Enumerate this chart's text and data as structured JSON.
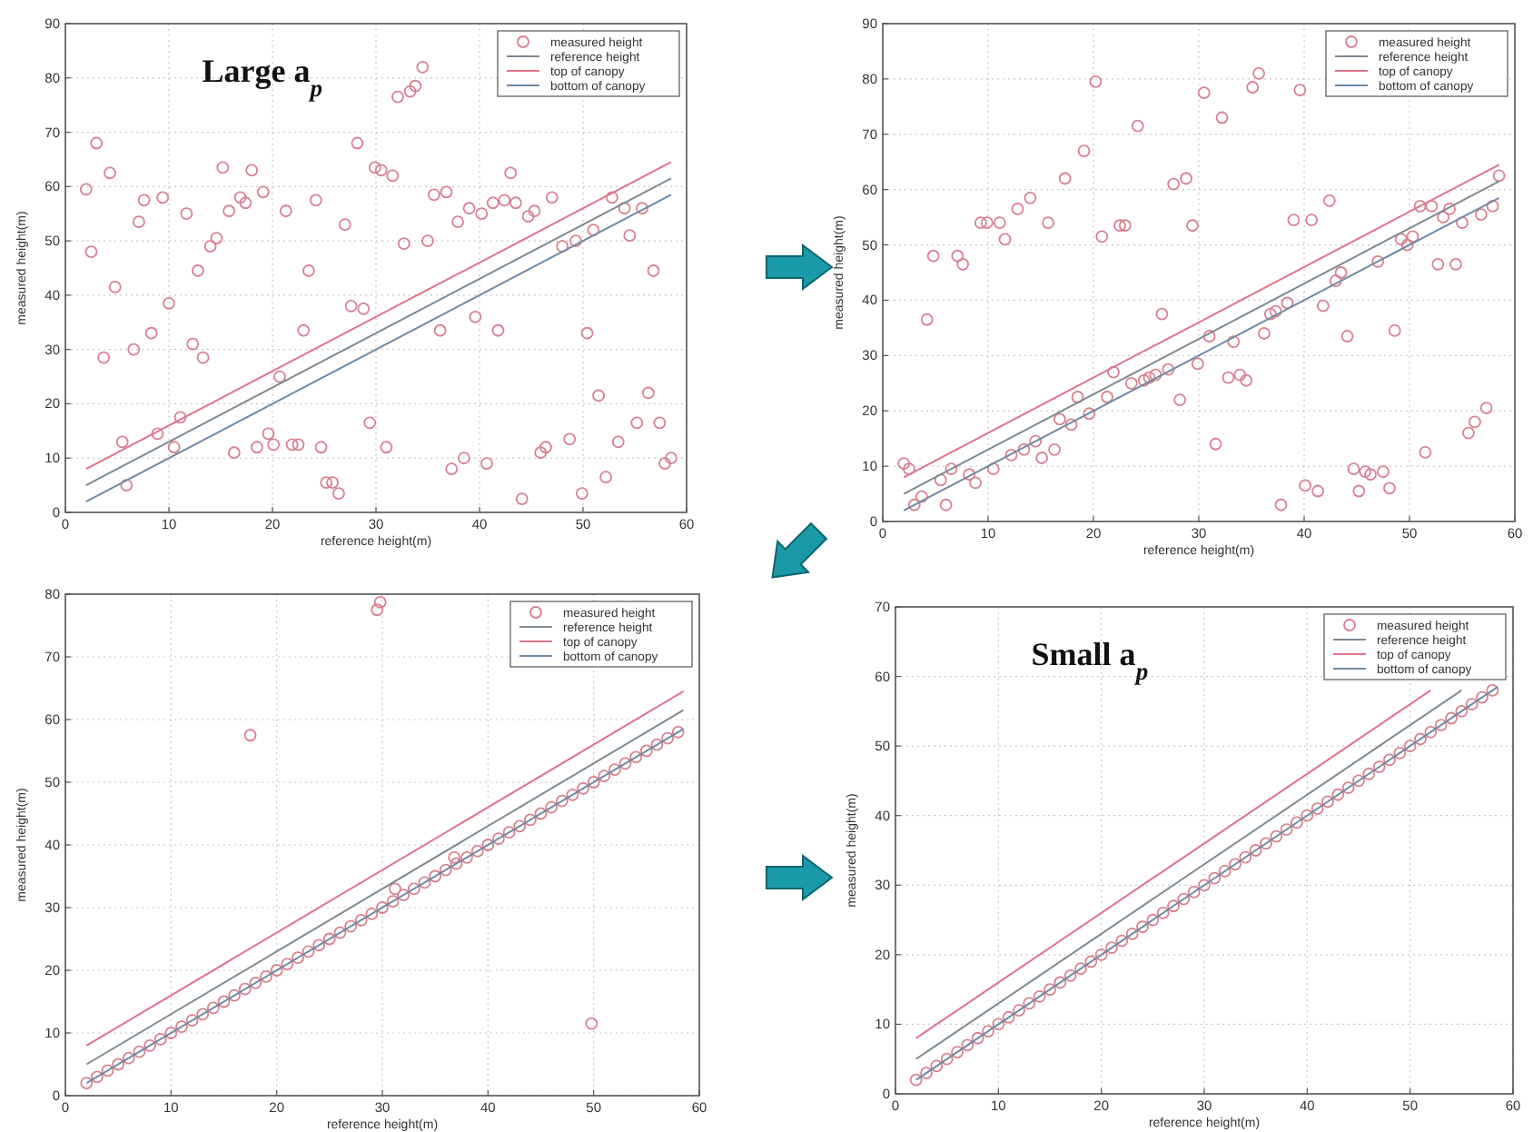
{
  "chart_data": [
    {
      "type": "scatter",
      "xlabel": "reference height(m)",
      "ylabel": "measured height(m)",
      "xlim": [
        0,
        60
      ],
      "ylim": [
        0,
        90
      ],
      "xticks": [
        0,
        10,
        20,
        30,
        40,
        50,
        60
      ],
      "yticks": [
        0,
        10,
        20,
        30,
        40,
        50,
        60,
        70,
        80,
        90
      ],
      "grid": true,
      "legend": "top right",
      "annotations": [
        "Large a$_{p}$"
      ],
      "series": [
        {
          "name": "measured height",
          "type": "scatter",
          "marker": "circle",
          "color": "#d9808f",
          "x": [
            2,
            2.5,
            3,
            3.7,
            4.3,
            4.8,
            5.5,
            5.9,
            6.6,
            7.1,
            7.6,
            8.3,
            8.9,
            9.4,
            10,
            10.5,
            11.1,
            11.7,
            12.3,
            12.8,
            13.3,
            14,
            14.6,
            15.2,
            15.8,
            16.3,
            16.9,
            17.4,
            18,
            18.5,
            19.1,
            19.6,
            20.1,
            20.7,
            21.3,
            21.9,
            22.5,
            23,
            23.5,
            24.2,
            24.7,
            25.2,
            25.8,
            26.4,
            27,
            27.6,
            28.2,
            28.8,
            29.4,
            29.9,
            30.5,
            31,
            31.6,
            32.1,
            32.7,
            33.3,
            33.8,
            34.5,
            35,
            35.6,
            36.2,
            36.8,
            37.3,
            37.9,
            38.5,
            39,
            39.6,
            40.2,
            40.7,
            41.3,
            41.8,
            42.4,
            43,
            43.5,
            44.1,
            44.7,
            45.3,
            45.9,
            46.4,
            47,
            48,
            48.7,
            49.3,
            49.9,
            50.4,
            51,
            51.5,
            52.2,
            52.8,
            53.4,
            54,
            54.5,
            55.2,
            55.7,
            56.3,
            56.8,
            57.4,
            57.9,
            58.5
          ],
          "values": [
            59.5,
            48,
            68,
            28.5,
            62.5,
            41.5,
            13,
            5,
            30,
            53.5,
            57.5,
            33,
            14.5,
            58,
            38.5,
            12,
            17.5,
            55,
            31,
            44.5,
            28.5,
            49,
            50.5,
            63.5,
            55.5,
            11,
            58,
            57,
            63,
            12,
            59,
            14.5,
            12.5,
            25,
            55.5,
            12.5,
            12.5,
            33.5,
            44.5,
            57.5,
            12,
            5.5,
            5.5,
            3.5,
            53,
            38,
            68,
            37.5,
            16.5,
            63.5,
            63,
            12,
            62,
            76.5,
            49.5,
            77.5,
            78.5,
            82,
            50,
            58.5,
            33.5,
            59,
            8,
            53.5,
            10,
            56,
            36,
            55,
            9,
            57,
            33.5,
            57.5,
            62.5,
            57,
            2.5,
            54.5,
            55.5,
            11,
            12,
            58,
            49,
            13.5,
            50,
            3.5,
            33,
            52,
            21.5,
            6.5,
            58,
            13,
            56,
            51,
            16.5,
            56,
            22,
            44.5,
            16.5,
            9,
            10
          ]
        },
        {
          "name": "reference height",
          "type": "line",
          "line_style": "solid",
          "color": "#7d8a94",
          "x": [
            2,
            58.5
          ],
          "values": [
            5,
            61.5
          ]
        },
        {
          "name": "top of canopy",
          "type": "line",
          "line_style": "solid",
          "color": "#e0748a",
          "x": [
            2,
            58.5
          ],
          "values": [
            8,
            64.5
          ]
        },
        {
          "name": "bottom of canopy",
          "type": "line",
          "line_style": "solid",
          "color": "#6f8aa3",
          "x": [
            2,
            58.5
          ],
          "values": [
            2,
            58.5
          ]
        }
      ]
    },
    {
      "type": "scatter",
      "xlabel": "reference height(m)",
      "ylabel": "measured height(m)",
      "xlim": [
        0,
        60
      ],
      "ylim": [
        0,
        90
      ],
      "xticks": [
        0,
        10,
        20,
        30,
        40,
        50,
        60
      ],
      "yticks": [
        0,
        10,
        20,
        30,
        40,
        50,
        60,
        70,
        80,
        90
      ],
      "grid": true,
      "legend": "top right",
      "series": [
        {
          "name": "measured height",
          "type": "scatter",
          "marker": "circle",
          "color": "#d9808f",
          "x": [
            2,
            2.5,
            3,
            3.7,
            4.2,
            4.8,
            5.5,
            6,
            6.5,
            7.1,
            7.6,
            8.2,
            8.8,
            9.3,
            9.9,
            10.5,
            11.1,
            11.6,
            12.2,
            12.8,
            13.4,
            14,
            14.5,
            15.1,
            15.7,
            16.3,
            16.8,
            17.3,
            17.9,
            18.5,
            19.1,
            19.6,
            20.2,
            20.8,
            21.3,
            21.9,
            22.5,
            23,
            23.6,
            24.2,
            24.8,
            25.3,
            25.9,
            26.5,
            27.1,
            27.6,
            28.2,
            28.8,
            29.4,
            29.9,
            30.5,
            31,
            31.6,
            32.2,
            32.8,
            33.3,
            33.9,
            34.5,
            35.1,
            35.7,
            36.2,
            36.8,
            37.3,
            37.8,
            38.4,
            39,
            39.6,
            40.1,
            40.7,
            41.3,
            41.8,
            42.4,
            43,
            43.5,
            44.1,
            44.7,
            45.2,
            45.8,
            46.3,
            47,
            47.5,
            48.1,
            48.6,
            49.2,
            49.8,
            50.3,
            51,
            51.5,
            52.1,
            52.7,
            53.2,
            53.8,
            54.4,
            55,
            55.6,
            56.2,
            56.8,
            57.3,
            57.9,
            58.5
          ],
          "values": [
            10.5,
            9.5,
            3,
            4.5,
            36.5,
            48,
            7.5,
            3,
            9.5,
            48,
            46.5,
            8.5,
            7,
            54,
            54,
            9.5,
            54,
            51,
            12,
            56.5,
            13,
            58.5,
            14.5,
            11.5,
            54,
            13,
            18.5,
            62,
            17.5,
            22.5,
            67,
            19.5,
            79.5,
            51.5,
            22.5,
            27,
            53.5,
            53.5,
            25,
            71.5,
            25.5,
            26,
            26.5,
            37.5,
            27.5,
            61,
            22,
            62,
            53.5,
            28.5,
            77.5,
            33.5,
            14,
            73,
            26,
            32.5,
            26.5,
            25.5,
            78.5,
            81,
            34,
            37.5,
            38,
            3,
            39.5,
            54.5,
            78,
            6.5,
            54.5,
            5.5,
            39,
            58,
            43.5,
            45,
            33.5,
            9.5,
            5.5,
            9,
            8.5,
            47,
            9,
            6,
            34.5,
            51,
            50,
            51.5,
            57,
            12.5,
            57,
            46.5,
            55,
            56.5,
            46.5,
            54,
            16,
            18,
            55.5,
            20.5,
            57,
            62.5
          ]
        },
        {
          "name": "reference height",
          "type": "line",
          "line_style": "solid",
          "color": "#7d8a94",
          "x": [
            2,
            58.5
          ],
          "values": [
            5,
            61.5
          ]
        },
        {
          "name": "top of canopy",
          "type": "line",
          "line_style": "solid",
          "color": "#e0748a",
          "x": [
            2,
            58.5
          ],
          "values": [
            8,
            64.5
          ]
        },
        {
          "name": "bottom of canopy",
          "type": "line",
          "line_style": "solid",
          "color": "#6f8aa3",
          "x": [
            2,
            58.5
          ],
          "values": [
            2,
            58.5
          ]
        }
      ]
    },
    {
      "type": "scatter",
      "xlabel": "reference height(m)",
      "ylabel": "measured height(m)",
      "xlim": [
        0,
        60
      ],
      "ylim": [
        0,
        80
      ],
      "xticks": [
        0,
        10,
        20,
        30,
        40,
        50,
        60
      ],
      "yticks": [
        0,
        10,
        20,
        30,
        40,
        50,
        60,
        70,
        80
      ],
      "grid": true,
      "legend": "top right",
      "series": [
        {
          "name": "measured height",
          "type": "scatter",
          "marker": "circle",
          "color": "#d9808f",
          "x": [
            2,
            3,
            4,
            5,
            6,
            7,
            8,
            9,
            10,
            11,
            12,
            13,
            14,
            15,
            16,
            17,
            18,
            19,
            20,
            21,
            22,
            23,
            24,
            25,
            26,
            27,
            28,
            29,
            30,
            31,
            32,
            33,
            34,
            35,
            36,
            37,
            38,
            39,
            40,
            41,
            42,
            43,
            44,
            45,
            46,
            47,
            48,
            49,
            50,
            51,
            52,
            53,
            54,
            55,
            56,
            57,
            58,
            17.5,
            29.5,
            29.8,
            49.8,
            31.2,
            36.8
          ],
          "values": [
            2,
            3,
            4,
            5,
            6,
            7,
            8,
            9,
            10,
            11,
            12,
            13,
            14,
            15,
            16,
            17,
            18,
            19,
            20,
            21,
            22,
            23,
            24,
            25,
            26,
            27,
            28,
            29,
            30,
            31,
            32,
            33,
            34,
            35,
            36,
            37,
            38,
            39,
            40,
            41,
            42,
            43,
            44,
            45,
            46,
            47,
            48,
            49,
            50,
            51,
            52,
            53,
            54,
            55,
            56,
            57,
            58,
            57.5,
            77.5,
            78.7,
            11.5,
            33,
            38
          ]
        },
        {
          "name": "reference height",
          "type": "line",
          "line_style": "solid",
          "color": "#7d8a94",
          "x": [
            2,
            58.5
          ],
          "values": [
            5,
            61.5
          ]
        },
        {
          "name": "top of canopy",
          "type": "line",
          "line_style": "solid",
          "color": "#e0748a",
          "x": [
            2,
            58.5
          ],
          "values": [
            8,
            64.5
          ]
        },
        {
          "name": "bottom of canopy",
          "type": "line",
          "line_style": "solid",
          "color": "#6f8aa3",
          "x": [
            2,
            58.5
          ],
          "values": [
            2,
            58.5
          ]
        }
      ]
    },
    {
      "type": "scatter",
      "xlabel": "reference height(m)",
      "ylabel": "measured height(m)",
      "xlim": [
        0,
        60
      ],
      "ylim": [
        0,
        70
      ],
      "xticks": [
        0,
        10,
        20,
        30,
        40,
        50,
        60
      ],
      "yticks": [
        0,
        10,
        20,
        30,
        40,
        50,
        60,
        70
      ],
      "grid": true,
      "legend": "top right",
      "annotations": [
        "Small a$_{p}$"
      ],
      "series": [
        {
          "name": "measured height",
          "type": "scatter",
          "marker": "circle",
          "color": "#d9808f",
          "x": [
            2,
            3,
            4,
            5,
            6,
            7,
            8,
            9,
            10,
            11,
            12,
            13,
            14,
            15,
            16,
            17,
            18,
            19,
            20,
            21,
            22,
            23,
            24,
            25,
            26,
            27,
            28,
            29,
            30,
            31,
            32,
            33,
            34,
            35,
            36,
            37,
            38,
            39,
            40,
            41,
            42,
            43,
            44,
            45,
            46,
            47,
            48,
            49,
            50,
            51,
            52,
            53,
            54,
            55,
            56,
            57,
            58
          ],
          "values": [
            2,
            3,
            4,
            5,
            6,
            7,
            8,
            9,
            10,
            11,
            12,
            13,
            14,
            15,
            16,
            17,
            18,
            19,
            20,
            21,
            22,
            23,
            24,
            25,
            26,
            27,
            28,
            29,
            30,
            31,
            32,
            33,
            34,
            35,
            36,
            37,
            38,
            39,
            40,
            41,
            42,
            43,
            44,
            45,
            46,
            47,
            48,
            49,
            50,
            51,
            52,
            53,
            54,
            55,
            56,
            57,
            58
          ]
        },
        {
          "name": "reference height",
          "type": "line",
          "line_style": "solid",
          "color": "#7d8a94",
          "x": [
            2,
            55
          ],
          "values": [
            5,
            58
          ]
        },
        {
          "name": "top of canopy",
          "type": "line",
          "line_style": "solid",
          "color": "#e0748a",
          "x": [
            2,
            52
          ],
          "values": [
            8,
            58
          ]
        },
        {
          "name": "bottom of canopy",
          "type": "line",
          "line_style": "solid",
          "color": "#6f8aa3",
          "x": [
            2,
            58.5
          ],
          "values": [
            2,
            58.5
          ]
        }
      ]
    }
  ]
}
